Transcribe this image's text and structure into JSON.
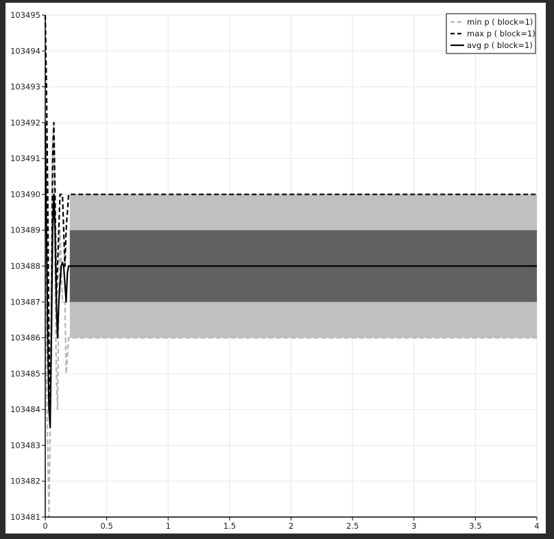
{
  "chart_data": {
    "type": "line",
    "title": "",
    "xlabel": "",
    "ylabel": "",
    "xlim": [
      0,
      4
    ],
    "ylim": [
      103481,
      103495
    ],
    "x_ticks": [
      0,
      0.5,
      1,
      1.5,
      2,
      2.5,
      3,
      3.5,
      4
    ],
    "x_tick_labels": [
      "0",
      "0.5",
      "1",
      "1.5",
      "2",
      "2.5",
      "3",
      "3.5",
      "4"
    ],
    "y_ticks": [
      103481,
      103482,
      103483,
      103484,
      103485,
      103486,
      103487,
      103488,
      103489,
      103490,
      103491,
      103492,
      103493,
      103494,
      103495
    ],
    "y_tick_labels": [
      "103481",
      "103482",
      "103483",
      "103484",
      "103485",
      "103486",
      "103487",
      "103488",
      "103489",
      "103490",
      "103491",
      "103492",
      "103493",
      "103494",
      "103495"
    ],
    "grid": true,
    "legend_position": "top-right",
    "series": [
      {
        "name": "min p ( block=1)",
        "style": "dashed",
        "color": "#b4b4b4",
        "x": [
          0,
          0.01,
          0.02,
          0.03,
          0.04,
          0.05,
          0.06,
          0.07,
          0.08,
          0.09,
          0.1,
          0.11,
          0.12,
          0.13,
          0.14,
          0.15,
          0.16,
          0.17,
          0.18,
          0.19,
          0.2,
          0.25,
          4
        ],
        "values": [
          103492,
          103485,
          103483,
          103481,
          103483.5,
          103488,
          103491.5,
          103492,
          103488,
          103485,
          103484,
          103487,
          103489,
          103488,
          103487,
          103487,
          103487,
          103485,
          103485.5,
          103486,
          103486,
          103486,
          103486
        ]
      },
      {
        "name": "max p ( block=1)",
        "style": "dashed",
        "color": "#000000",
        "x": [
          0,
          0.01,
          0.02,
          0.03,
          0.04,
          0.05,
          0.06,
          0.07,
          0.08,
          0.09,
          0.1,
          0.11,
          0.12,
          0.13,
          0.14,
          0.15,
          0.16,
          0.17,
          0.18,
          0.19,
          0.2,
          0.25,
          4
        ],
        "values": [
          103495,
          103493,
          103490,
          103486,
          103484,
          103486,
          103491,
          103492,
          103490,
          103487,
          103488,
          103489,
          103490,
          103490,
          103490,
          103489,
          103488,
          103489,
          103489.5,
          103490,
          103490,
          103490,
          103490
        ]
      },
      {
        "name": "avg p ( block=1)",
        "style": "solid",
        "color": "#000000",
        "x": [
          0,
          0.01,
          0.02,
          0.03,
          0.04,
          0.05,
          0.06,
          0.07,
          0.08,
          0.09,
          0.1,
          0.11,
          0.12,
          0.13,
          0.14,
          0.15,
          0.16,
          0.17,
          0.18,
          0.19,
          0.2,
          0.25,
          4
        ],
        "values": [
          103492,
          103489,
          103486,
          103484,
          103483.5,
          103486,
          103489,
          103490,
          103489,
          103487,
          103486,
          103487,
          103487.5,
          103488,
          103488.1,
          103488,
          103487.5,
          103487,
          103487.8,
          103488,
          103488,
          103488,
          103488
        ]
      }
    ],
    "bands": [
      {
        "from": 103486,
        "to": 103490,
        "color": "#c0c0c0"
      },
      {
        "from": 103487,
        "to": 103489,
        "color": "#606060"
      }
    ]
  }
}
